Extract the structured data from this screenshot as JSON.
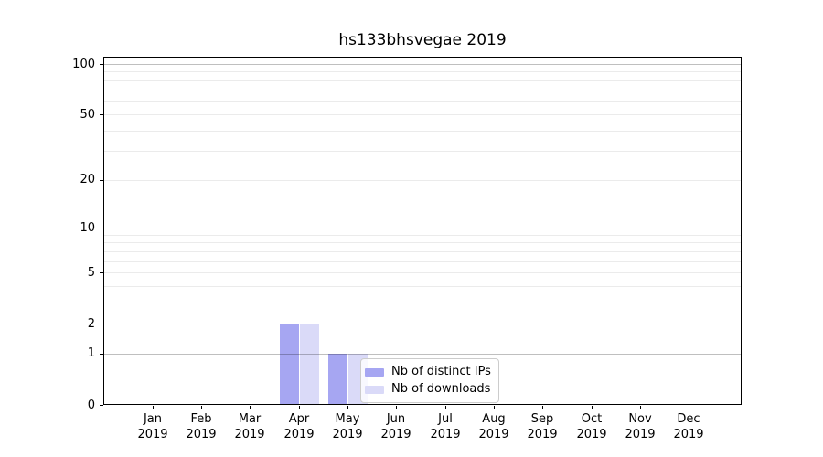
{
  "chart_data": {
    "type": "bar",
    "title": "hs133bhsvegae 2019",
    "categories": [
      "Jan 2019",
      "Feb 2019",
      "Mar 2019",
      "Apr 2019",
      "May 2019",
      "Jun 2019",
      "Jul 2019",
      "Aug 2019",
      "Sep 2019",
      "Oct 2019",
      "Nov 2019",
      "Dec 2019"
    ],
    "series": [
      {
        "name": "Nb of distinct IPs",
        "color": "#a6a6f2",
        "values": [
          0,
          0,
          0,
          2,
          1,
          0,
          0,
          0,
          0,
          0,
          0,
          0
        ]
      },
      {
        "name": "Nb of downloads",
        "color": "#dadaf8",
        "values": [
          0,
          0,
          0,
          2,
          1,
          0,
          0,
          0,
          0,
          0,
          0,
          0
        ]
      }
    ],
    "xlabel": "",
    "ylabel": "",
    "yscale": "log1p",
    "ylim": [
      0,
      113
    ],
    "y_tick_values": [
      0,
      1,
      2,
      5,
      10,
      20,
      50,
      100
    ],
    "grid": "horizontal",
    "grid_minor_values": [
      2,
      3,
      4,
      5,
      6,
      7,
      8,
      9,
      20,
      30,
      40,
      50,
      60,
      70,
      80,
      90
    ],
    "grid_major_values": [
      1,
      10,
      100
    ],
    "legend_position": "inside lower center-right"
  },
  "colors": {
    "background": "#ffffff",
    "spine": "#000000",
    "grid_minor": "rgba(0,0,0,0.08)",
    "grid_major": "rgba(0,0,0,0.25)",
    "legend_border": "#cccccc",
    "legend_background": "rgba(255,255,255,0.8)",
    "text": "#000000"
  }
}
